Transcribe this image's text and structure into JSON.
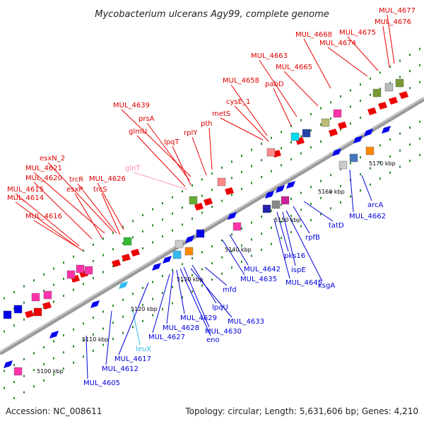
{
  "title": "Mycobacterium ulcerans Agy99, complete genome",
  "footer": {
    "accession": "Accession: NC_008611",
    "summary": "Topology: circular; Length: 5,631,606 bp; Genes: 4,210"
  },
  "axis_ticks": [
    "5100 kbp",
    "5110 kbp",
    "5120 kbp",
    "5130 kbp",
    "5140 kbp",
    "5150 kbp",
    "5160 kbp",
    "5170 kbp"
  ],
  "upper_genes": [
    "MUL_4677",
    "MUL_4676",
    "MUL_4675",
    "MUL_4674",
    "MUL_4668",
    "MUL_4663",
    "MUL_4665",
    "pabD",
    "MUL_4658",
    "cysE_1",
    "metS",
    "MUL_4639",
    "prsA",
    "lpqT",
    "glmU",
    "rplY",
    "pth",
    "glnT",
    "esxN_2",
    "MUL_4621",
    "trcR",
    "MUL_4620",
    "MUL_4626",
    "esxP",
    "trcS",
    "MUL_4615",
    "MUL_4614",
    "MUL_4616"
  ],
  "lower_genes": [
    "arcA",
    "MUL_4662",
    "tatD",
    "rpfB",
    "pks16",
    "ispE",
    "ksgA",
    "MUL_4645",
    "MUL_4642",
    "MUL_4635",
    "mfd",
    "lpqU",
    "MUL_4633",
    "MUL_4630",
    "eno",
    "MUL_4629",
    "MUL_4628",
    "MUL_4627",
    "leuX",
    "MUL_4617",
    "MUL_4612",
    "MUL_4605"
  ],
  "colors": {
    "backbone": "#888888",
    "forward_feature": "#ee0000",
    "reverse_feature": "#0000ee",
    "label_forward": "#e00000",
    "label_reverse": "#0000dd",
    "tick_dots": "#228822"
  }
}
